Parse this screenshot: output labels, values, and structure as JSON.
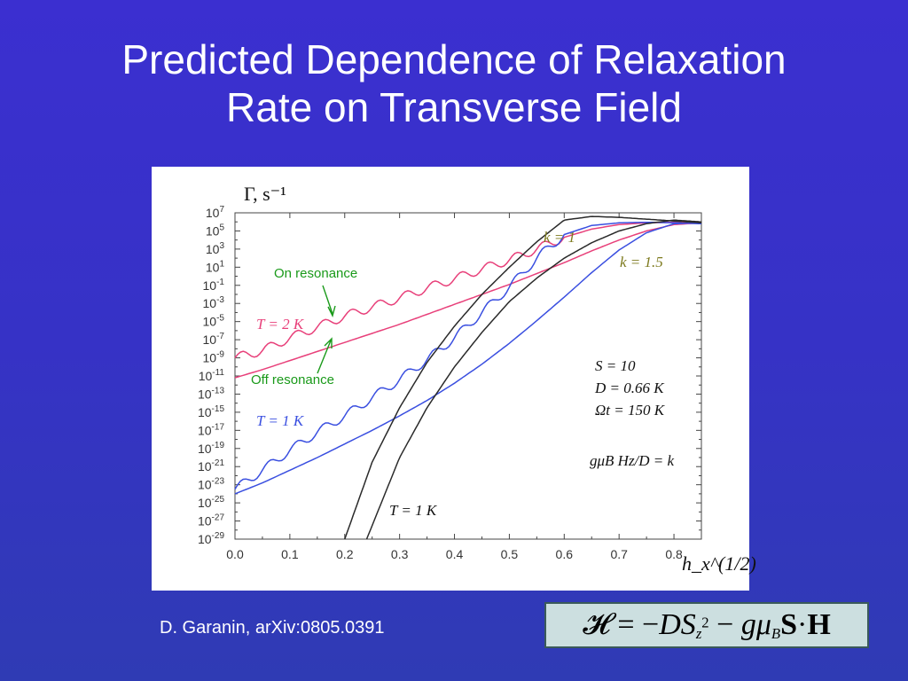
{
  "slide": {
    "title_line1": "Predicted Dependence of Relaxation",
    "title_line2": "Rate on Transverse Field",
    "credit": "D. Garanin, arXiv:0805.0391",
    "formula": "ℋ = −DS_z^2 − gμ_B S·H"
  },
  "colors": {
    "background": "#3634c8",
    "T2_curve": "#e8407a",
    "T1_curve": "#3a4fe0",
    "k_curves": "#2a2a2a",
    "k_label": "#7d7a1e",
    "annotation": "#1a9a1a"
  },
  "chart_data": {
    "type": "line",
    "title": "",
    "ylabel": "Γ, s⁻¹",
    "xlabel": "h_x^(1/2)",
    "yscale": "log",
    "xlim": [
      0.0,
      0.85
    ],
    "ylim": [
      1e-29,
      10000000.0
    ],
    "x_ticks": [
      "0.0",
      "0.1",
      "0.2",
      "0.3",
      "0.4",
      "0.5",
      "0.6",
      "0.7",
      "0.8"
    ],
    "y_tick_exponents": [
      7,
      5,
      3,
      1,
      -1,
      -3,
      -5,
      -7,
      -9,
      -11,
      -13,
      -15,
      -17,
      -19,
      -21,
      -23,
      -25,
      -27,
      -29
    ],
    "series": [
      {
        "name": "T = 2 K (on resonance)",
        "color": "#e8407a",
        "x": [
          0.0,
          0.05,
          0.1,
          0.15,
          0.2,
          0.25,
          0.3,
          0.35,
          0.4,
          0.45,
          0.5,
          0.55,
          0.6,
          0.65,
          0.7,
          0.75,
          0.8,
          0.85
        ],
        "log10_y": [
          -9,
          -8.2,
          -6.8,
          -5.6,
          -4.4,
          -3.4,
          -2.4,
          -1.3,
          -0.3,
          0.8,
          1.8,
          3.0,
          4.3,
          5.2,
          5.7,
          5.9,
          5.95,
          5.9
        ]
      },
      {
        "name": "T = 2 K (off resonance)",
        "color": "#e8407a",
        "x": [
          0.0,
          0.05,
          0.1,
          0.15,
          0.2,
          0.25,
          0.3,
          0.35,
          0.4,
          0.45,
          0.5,
          0.55,
          0.6,
          0.65,
          0.7,
          0.75,
          0.8,
          0.85
        ],
        "log10_y": [
          -11.2,
          -10.3,
          -9.3,
          -8.3,
          -7.3,
          -6.3,
          -5.3,
          -4.2,
          -3.1,
          -2.0,
          -0.9,
          0.3,
          1.5,
          2.8,
          4.0,
          5.0,
          5.7,
          5.9
        ]
      },
      {
        "name": "T = 1 K (on resonance)",
        "color": "#3a4fe0",
        "x": [
          0.0,
          0.05,
          0.1,
          0.15,
          0.2,
          0.25,
          0.3,
          0.35,
          0.4,
          0.45,
          0.5,
          0.55,
          0.6,
          0.65,
          0.7,
          0.75,
          0.8,
          0.85
        ],
        "log10_y": [
          -23.5,
          -21.4,
          -19.2,
          -17.2,
          -15.4,
          -13.4,
          -11.4,
          -9.2,
          -6.8,
          -4.0,
          -1.2,
          2.0,
          4.6,
          5.6,
          5.9,
          5.95,
          5.9,
          5.8
        ]
      },
      {
        "name": "T = 1 K (off resonance)",
        "color": "#3a4fe0",
        "x": [
          0.0,
          0.05,
          0.1,
          0.15,
          0.2,
          0.25,
          0.3,
          0.35,
          0.4,
          0.45,
          0.5,
          0.55,
          0.6,
          0.65,
          0.7,
          0.75,
          0.8,
          0.85
        ],
        "log10_y": [
          -24,
          -22.8,
          -21.4,
          -20.0,
          -18.5,
          -17.0,
          -15.4,
          -13.7,
          -11.8,
          -9.7,
          -7.4,
          -4.9,
          -2.3,
          0.4,
          2.9,
          4.8,
          5.8,
          5.9
        ]
      },
      {
        "name": "k = 1",
        "color": "#2a2a2a",
        "x": [
          0.2,
          0.25,
          0.3,
          0.35,
          0.4,
          0.45,
          0.5,
          0.55,
          0.6,
          0.65,
          0.7,
          0.75,
          0.8,
          0.85
        ],
        "log10_y": [
          -29,
          -20.5,
          -14.5,
          -9.5,
          -5.5,
          -2.0,
          1.0,
          3.8,
          6.2,
          6.6,
          6.5,
          6.3,
          6.1,
          5.9
        ]
      },
      {
        "name": "k = 1.5",
        "color": "#2a2a2a",
        "x": [
          0.24,
          0.3,
          0.35,
          0.4,
          0.45,
          0.5,
          0.55,
          0.6,
          0.65,
          0.7,
          0.75,
          0.8,
          0.85
        ],
        "log10_y": [
          -29,
          -20.0,
          -14.5,
          -10.0,
          -6.2,
          -2.8,
          -0.2,
          2.0,
          3.7,
          5.0,
          5.8,
          6.2,
          6.0
        ]
      }
    ],
    "annotations": {
      "on_resonance": "On resonance",
      "off_resonance": "Off resonance",
      "T2": "T = 2 K",
      "T1": "T = 1 K",
      "T1_black": "T = 1 K",
      "k1": "k = 1",
      "k15": "k = 1.5",
      "param_S": "S = 10",
      "param_D": "D = 0.66 K",
      "param_Omega": "Ωt = 150 K",
      "param_k": "gμB Hz/D = k"
    }
  }
}
